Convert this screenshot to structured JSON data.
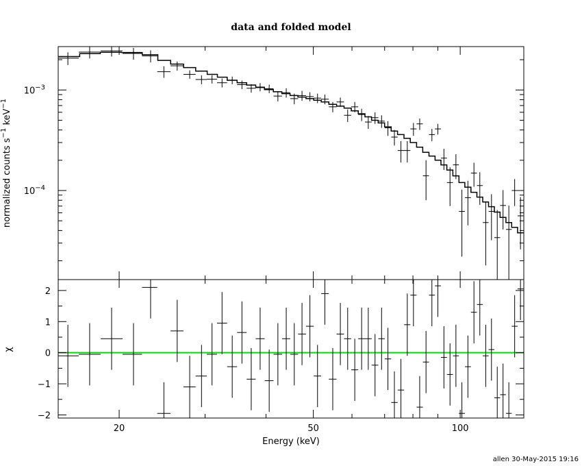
{
  "footer": "allen 30-May-2015 19:16",
  "chart_data": [
    {
      "panel": "top",
      "type": "line",
      "title": "data and folded model",
      "ylabel_parts": [
        "normalized counts s",
        "−1",
        " keV",
        "−1"
      ],
      "xlim": [
        15,
        135
      ],
      "ylim": [
        1.3e-05,
        0.0027
      ],
      "xscale": "log",
      "yscale": "log",
      "yticks": [
        {
          "value": 0.001,
          "base": "10",
          "exp": "−3"
        },
        {
          "value": 0.0001,
          "base": "10",
          "exp": "−4"
        }
      ],
      "data": {
        "name": "data",
        "x": [
          15.7,
          17.4,
          19.3,
          21.4,
          23.2,
          24.7,
          26.3,
          27.9,
          29.5,
          31.0,
          32.5,
          34.1,
          35.7,
          37.3,
          38.9,
          40.6,
          42.3,
          44.0,
          45.7,
          47.4,
          49.2,
          51.0,
          52.8,
          54.8,
          56.8,
          58.8,
          60.8,
          62.8,
          64.8,
          66.9,
          69.0,
          71.1,
          73.3,
          75.6,
          77.9,
          80.2,
          82.6,
          85.1,
          87.5,
          90.0,
          92.6,
          95.3,
          98.0,
          100.8,
          103.7,
          106.7,
          109.7,
          112.8,
          115.9,
          119.1,
          122.4,
          125.8,
          129.3,
          132.9
        ],
        "y": [
          0.00207,
          0.00238,
          0.00245,
          0.00231,
          0.00218,
          0.00152,
          0.00174,
          0.00143,
          0.00127,
          0.00128,
          0.00118,
          0.00125,
          0.00113,
          0.00104,
          0.00107,
          0.00103,
          0.00087,
          0.00094,
          0.00082,
          0.00088,
          0.00086,
          0.00083,
          0.00081,
          0.00068,
          0.00076,
          0.00056,
          0.00068,
          0.00057,
          0.00048,
          0.00053,
          0.00049,
          0.00042,
          0.00034,
          0.00025,
          0.00025,
          0.00041,
          0.00046,
          0.00014,
          0.00036,
          0.00041,
          0.00021,
          0.00012,
          0.00018,
          6.2e-05,
          8.5e-05,
          0.000149,
          0.000112,
          4.8e-05,
          6.2e-05,
          3.4e-05,
          7.1e-05,
          4.1e-05,
          0.0001,
          5.6e-05
        ],
        "yerr": [
          0.0003,
          0.00032,
          0.0003,
          0.00031,
          0.0003,
          0.0002,
          0.00018,
          0.00014,
          0.00013,
          0.00012,
          0.00012,
          0.00011,
          0.00011,
          0.0001,
          0.0001,
          0.0001,
          0.0001,
          0.0001,
          0.0001,
          0.0001,
          9e-05,
          9e-05,
          9e-05,
          8e-05,
          8e-05,
          8e-05,
          8e-05,
          8e-05,
          7e-05,
          7e-05,
          7e-05,
          7e-05,
          6e-05,
          6e-05,
          6e-05,
          6e-05,
          6e-05,
          6e-05,
          5e-05,
          5e-05,
          5e-05,
          5e-05,
          5e-05,
          4e-05,
          4e-05,
          4e-05,
          4e-05,
          3e-05,
          3e-05,
          3e-05,
          3e-05,
          3e-05,
          3e-05,
          3e-05
        ]
      },
      "model": {
        "name": "folded model",
        "x": [
          15.0,
          16.6,
          18.3,
          20.2,
          22.3,
          24.0,
          25.5,
          27.1,
          28.7,
          30.3,
          31.8,
          33.3,
          34.9,
          36.5,
          38.1,
          39.7,
          41.4,
          43.1,
          44.8,
          46.5,
          48.3,
          50.1,
          51.9,
          53.8,
          55.8,
          57.8,
          59.8,
          61.8,
          63.8,
          65.8,
          67.9,
          70.0,
          72.2,
          74.4,
          76.7,
          79.0,
          81.4,
          83.8,
          86.3,
          88.8,
          91.3,
          93.9,
          96.6,
          99.4,
          102.2,
          105.2,
          108.2,
          111.2,
          114.3,
          117.5,
          120.7,
          124.1,
          127.5,
          131.1,
          135.0
        ],
        "y": [
          0.00215,
          0.0023,
          0.00237,
          0.00236,
          0.00224,
          0.00197,
          0.00181,
          0.00167,
          0.00154,
          0.00143,
          0.00134,
          0.00125,
          0.00118,
          0.00112,
          0.00106,
          0.00101,
          0.00096,
          0.00092,
          0.00088,
          0.00085,
          0.00082,
          0.00079,
          0.00076,
          0.00072,
          0.00069,
          0.00066,
          0.00062,
          0.00058,
          0.00054,
          0.0005,
          0.00047,
          0.00043,
          0.00039,
          0.00036,
          0.00033,
          0.0003,
          0.00027,
          0.00024,
          0.00022,
          0.0002,
          0.00018,
          0.00016,
          0.00014,
          0.00012,
          0.000108,
          9.6e-05,
          8.6e-05,
          7.7e-05,
          6.9e-05,
          6.1e-05,
          5.4e-05,
          4.8e-05,
          4.3e-05,
          3.8e-05,
          3.8e-05
        ]
      }
    },
    {
      "panel": "bottom",
      "type": "scatter",
      "xlabel": "Energy (keV)",
      "ylabel": "χ",
      "xlim": [
        15,
        135
      ],
      "ylim": [
        -2.1,
        2.35
      ],
      "xscale": "log",
      "xticks": [
        {
          "value": 20,
          "label": "20"
        },
        {
          "value": 50,
          "label": "50"
        },
        {
          "value": 100,
          "label": "100"
        }
      ],
      "yticks": [
        {
          "value": 2,
          "label": "2"
        },
        {
          "value": 1,
          "label": "1"
        },
        {
          "value": 0,
          "label": "0"
        },
        {
          "value": -1,
          "label": "−1"
        },
        {
          "value": -2,
          "label": "−2"
        }
      ],
      "zero_line_color": "#00dd00",
      "residuals": {
        "name": "data",
        "x": [
          15.7,
          17.4,
          19.3,
          21.4,
          23.2,
          24.7,
          26.3,
          27.9,
          29.5,
          31.0,
          32.5,
          34.1,
          35.7,
          37.3,
          38.9,
          40.6,
          42.3,
          44.0,
          45.7,
          47.4,
          49.2,
          51.0,
          52.8,
          54.8,
          56.8,
          58.8,
          60.8,
          62.8,
          64.8,
          66.9,
          69.0,
          71.1,
          73.3,
          75.6,
          77.9,
          80.2,
          82.6,
          85.1,
          87.5,
          90.0,
          92.6,
          95.3,
          98.0,
          100.8,
          103.7,
          106.7,
          109.7,
          112.8,
          115.9,
          119.1,
          122.4,
          125.8,
          129.3,
          132.9
        ],
        "y": [
          -0.1,
          -0.05,
          0.45,
          -0.05,
          2.1,
          -1.95,
          0.7,
          -1.1,
          -0.75,
          -0.05,
          0.95,
          -0.45,
          0.65,
          -0.85,
          0.45,
          -0.9,
          -0.05,
          0.45,
          -0.05,
          0.6,
          0.85,
          -0.75,
          1.9,
          -0.85,
          0.6,
          0.45,
          -0.55,
          0.45,
          0.45,
          -0.4,
          0.45,
          -0.2,
          -1.6,
          -1.2,
          0.9,
          1.85,
          -1.75,
          -0.3,
          1.85,
          2.15,
          -0.15,
          -0.7,
          -0.1,
          -1.95,
          -0.45,
          1.3,
          1.55,
          -0.1,
          0.1,
          -1.45,
          -1.35,
          -1.95,
          0.85,
          2.05
        ],
        "yerr": [
          1.0,
          1.0,
          1.0,
          1.0,
          1.0,
          1.0,
          1.0,
          1.0,
          1.0,
          1.0,
          1.0,
          1.0,
          1.0,
          1.0,
          1.0,
          1.0,
          1.0,
          1.0,
          1.0,
          1.0,
          1.0,
          1.0,
          1.0,
          1.0,
          1.0,
          1.0,
          1.0,
          1.0,
          1.0,
          1.0,
          1.0,
          1.0,
          1.0,
          1.0,
          1.0,
          1.0,
          1.0,
          1.0,
          1.0,
          1.0,
          1.0,
          1.0,
          1.0,
          1.0,
          1.0,
          1.0,
          1.0,
          1.0,
          1.0,
          1.0,
          1.0,
          1.0,
          1.0,
          1.0
        ]
      }
    }
  ]
}
